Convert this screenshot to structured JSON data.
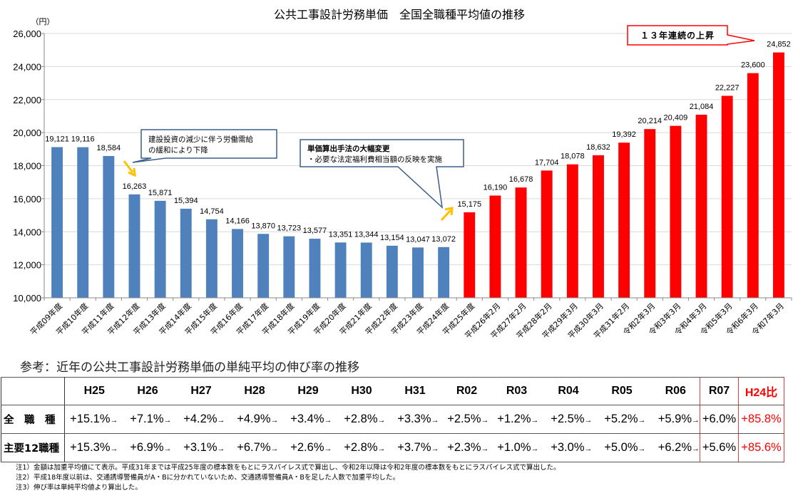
{
  "chart_data": {
    "type": "bar",
    "title": "公共工事設計労務単価　全国全職種平均値の推移",
    "ylabel": "（円）",
    "xlabel": "",
    "ylim": [
      10000,
      26000
    ],
    "ytick_step": 2000,
    "yticks": [
      "10,000",
      "12,000",
      "14,000",
      "16,000",
      "18,000",
      "20,000",
      "22,000",
      "24,000",
      "26,000"
    ],
    "grid": true,
    "categories": [
      "平成09年度",
      "平成10年度",
      "平成11年度",
      "平成12年度",
      "平成13年度",
      "平成14年度",
      "平成15年度",
      "平成16年度",
      "平成17年度",
      "平成18年度",
      "平成19年度",
      "平成20年度",
      "平成21年度",
      "平成22年度",
      "平成23年度",
      "平成24年度",
      "平成25年度",
      "平成26年2月",
      "平成27年2月",
      "平成28年2月",
      "平成29年3月",
      "平成30年3月",
      "平成31年2月",
      "令和2年3月",
      "令和3年3月",
      "令和4年3月",
      "令和5年3月",
      "令和6年3月",
      "令和7年3月"
    ],
    "values": [
      19121,
      19116,
      18584,
      16263,
      15871,
      15394,
      14754,
      14166,
      13870,
      13723,
      13577,
      13351,
      13344,
      13154,
      13047,
      13072,
      15175,
      16190,
      16678,
      17704,
      18078,
      18632,
      19392,
      20214,
      20409,
      21084,
      22227,
      23600,
      24852
    ],
    "value_labels": [
      "19,121",
      "19,116",
      "18,584",
      "16,263",
      "15,871",
      "15,394",
      "14,754",
      "14,166",
      "13,870",
      "13,723",
      "13,577",
      "13,351",
      "13,344",
      "13,154",
      "13,047",
      "13,072",
      "15,175",
      "16,190",
      "16,678",
      "17,704",
      "18,078",
      "18,632",
      "19,392",
      "20,214",
      "20,409",
      "21,084",
      "22,227",
      "23,600",
      "24,852"
    ],
    "series_colors": {
      "before_H25": "#4f81bd",
      "from_H25": "#ff0000"
    },
    "red_from_index": 16,
    "annotations": [
      {
        "id": "decline",
        "lines": [
          "建設投資の減少に伴う労働需給",
          "の緩和により下降"
        ],
        "points_to": "平成12年度",
        "arrow": "down"
      },
      {
        "id": "method-change",
        "title": "単価算出手法の大幅変更",
        "lines": [
          "・必要な法定福利費相当額の反映を実施"
        ],
        "points_to": "平成25年度",
        "arrow": "up"
      },
      {
        "id": "streak",
        "lines": [
          "１３年連続の上昇"
        ],
        "points_to": "令和7年3月",
        "border_color": "#ff0000"
      }
    ]
  },
  "reference": {
    "title": "参考：近年の公共工事設計労務単価の単純平均の伸び率の推移",
    "headers": [
      "H25",
      "H26",
      "H27",
      "H28",
      "H29",
      "H30",
      "H31",
      "R02",
      "R03",
      "R04",
      "R05",
      "R06",
      "R07",
      "H24比"
    ],
    "arrow": "→",
    "rows": [
      {
        "label": "全　職　種",
        "values": [
          "+15.1%",
          "+7.1%",
          "+4.2%",
          "+4.9%",
          "+3.4%",
          "+2.8%",
          "+3.3%",
          "+2.5%",
          "+1.2%",
          "+2.5%",
          "+5.2%",
          "+5.9%",
          "+6.0%"
        ],
        "total": "+85.8%"
      },
      {
        "label": "主要12職種",
        "values": [
          "+15.3%",
          "+6.9%",
          "+3.1%",
          "+6.7%",
          "+2.6%",
          "+2.8%",
          "+3.7%",
          "+2.3%",
          "+1.0%",
          "+3.0%",
          "+5.0%",
          "+6.2%",
          "+5.6%"
        ],
        "total": "+85.6%"
      }
    ],
    "highlight_color": "#ff0000"
  },
  "notes": [
    "注1）金額は加重平均値にて表示。平成31年までは平成25年度の標本数をもとにラスパイレス式で算出し、令和2年以降は令和2年度の標本数をもとにラスパイレス式で算出した。",
    "注2）平成18年度以前は、交通誘導警備員がA・Bに分かれていないため、交通誘導警備員A・Bを足した人数で加重平均した。",
    "注3）伸び率は単純平均値より算出した。"
  ]
}
